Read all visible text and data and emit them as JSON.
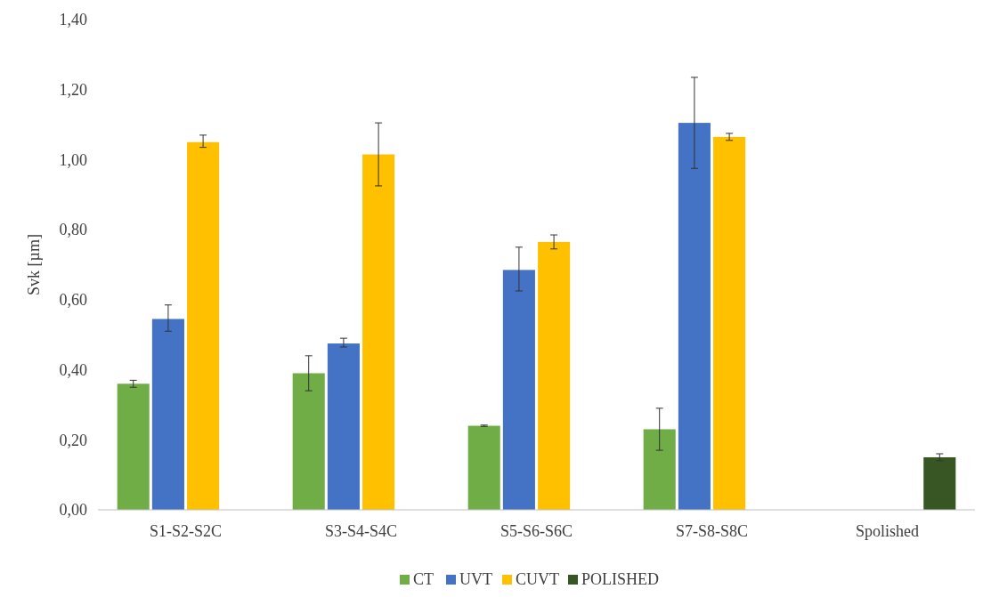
{
  "chart_data": {
    "type": "bar",
    "ylabel": "Svk [µm]",
    "categories": [
      "S1-S2-S2C",
      "S3-S4-S4C",
      "S5-S6-S6C",
      "S7-S8-S8C",
      "Spolished"
    ],
    "series": [
      {
        "name": "CT",
        "color": "#70ad47",
        "values": [
          0.36,
          0.39,
          0.24,
          0.23,
          null
        ],
        "errors": [
          [
            0.35,
            0.37
          ],
          [
            0.34,
            0.44
          ],
          [
            0.238,
            0.242
          ],
          [
            0.17,
            0.29
          ],
          null
        ]
      },
      {
        "name": "UVT",
        "color": "#4472c4",
        "values": [
          0.545,
          0.475,
          0.685,
          1.105,
          null
        ],
        "errors": [
          [
            0.51,
            0.585
          ],
          [
            0.465,
            0.49
          ],
          [
            0.625,
            0.75
          ],
          [
            0.975,
            1.235
          ],
          null
        ]
      },
      {
        "name": "CUVT",
        "color": "#ffc000",
        "values": [
          1.05,
          1.015,
          0.765,
          1.065,
          null
        ],
        "errors": [
          [
            1.035,
            1.07
          ],
          [
            0.925,
            1.105
          ],
          [
            0.745,
            0.785
          ],
          [
            1.055,
            1.075
          ],
          null
        ]
      },
      {
        "name": "POLISHED",
        "color": "#375623",
        "values": [
          null,
          null,
          null,
          null,
          0.15
        ],
        "errors": [
          null,
          null,
          null,
          null,
          [
            0.14,
            0.16
          ]
        ]
      }
    ],
    "ylim": [
      0,
      1.4
    ],
    "yticks": [
      {
        "value": 0,
        "label": "0,00"
      },
      {
        "value": 0.2,
        "label": "0,20"
      },
      {
        "value": 0.4,
        "label": "0,40"
      },
      {
        "value": 0.6,
        "label": "0,60"
      },
      {
        "value": 0.8,
        "label": "0,80"
      },
      {
        "value": 1,
        "label": "1,00"
      },
      {
        "value": 1.2,
        "label": "1,20"
      },
      {
        "value": 1.4,
        "label": "1,40"
      }
    ],
    "grid": false,
    "legend": "bottom"
  }
}
